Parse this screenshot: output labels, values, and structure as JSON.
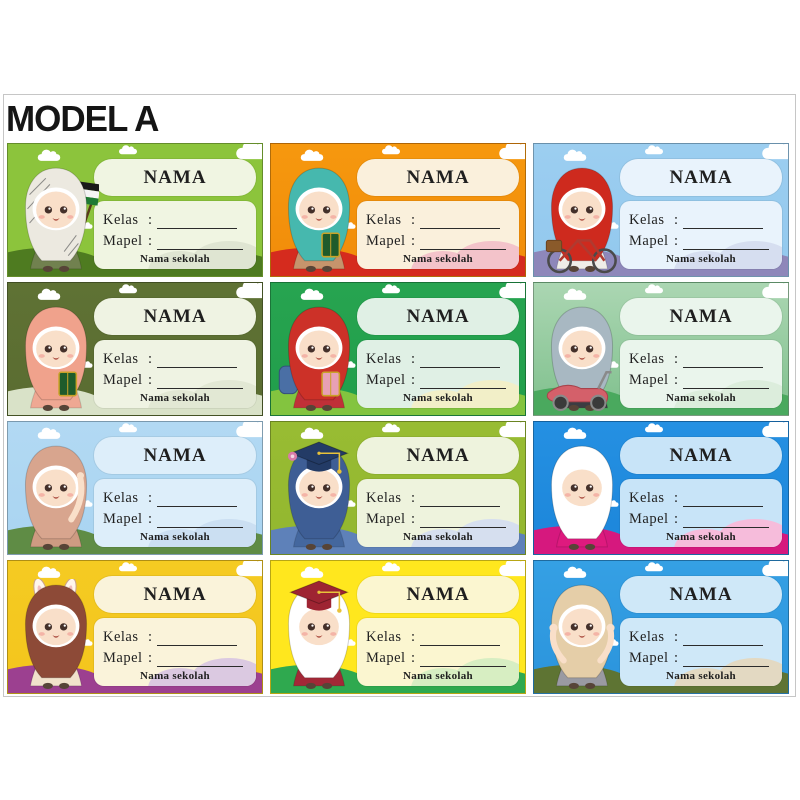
{
  "page": {
    "title": "MODEL A",
    "background": "#ffffff",
    "frame_border": "#c6c6c6"
  },
  "labels": {
    "nama": "NAMA",
    "kelas": "Kelas",
    "mapel": "Mapel",
    "colon": ":",
    "school": "Nama sekolah"
  },
  "cards": [
    {
      "name": "green-keffiyeh-flag",
      "character": "chibi girl in black-and-white keffiyeh hijab holding a Palestinian flag",
      "props": [
        "keffiyeh",
        "flag"
      ],
      "colors": {
        "bg": "#8CC43C",
        "bg2": "#8CC43C",
        "hill": "#4E7B20",
        "hill2": "#E2E6DA",
        "panel": "#F0F5E2",
        "pcloud": "#DFE5D2",
        "hijab": "#ECE9E0",
        "dress": "#71814F"
      }
    },
    {
      "name": "orange-quran-girl",
      "character": "chibi girl in teal hijab and tan dress holding a green Quran",
      "props": [
        "book"
      ],
      "colors": {
        "bg": "#F18C0A",
        "bg2": "#F6980E",
        "hill": "#D52B1E",
        "hill2": "#E4554A",
        "panel": "#FAF0DC",
        "pcloud": "#F3C3CA",
        "hijab": "#46B8AE",
        "dress": "#C6946C"
      }
    },
    {
      "name": "blue-bicycle-girl",
      "character": "chibi girl in red hijab riding a bicycle with a basket",
      "props": [
        "bike"
      ],
      "colors": {
        "bg": "#92C8EE",
        "bg2": "#9CCEF0",
        "hill": "#8E87BA",
        "hill2": "#A59FC9",
        "panel": "#E9F3FC",
        "pcloud": "#D6DEF0",
        "hijab": "#CE2A1E",
        "dress": "#EFEDE8"
      }
    },
    {
      "name": "olive-quran-girl",
      "character": "chibi girl in peach hijab holding a green Quran",
      "props": [
        "book"
      ],
      "colors": {
        "bg": "#5A6C31",
        "bg2": "#5F7234",
        "hill": "#D9E2C8",
        "hill2": "#F2F5EA",
        "panel": "#EFF3E3",
        "pcloud": "#E2E8D4",
        "hijab": "#F0A28C",
        "dress": "#EFA893"
      }
    },
    {
      "name": "green-school-girl",
      "character": "chibi girl in red hijab with blue backpack holding a book",
      "props": [
        "backpack",
        "book:#E8A0B4"
      ],
      "colors": {
        "bg": "#219E4B",
        "bg2": "#27A450",
        "hill": "#83C43F",
        "hill2": "#C9E69E",
        "panel": "#E0F0E5",
        "pcloud": "#F2EFC8",
        "hijab": "#CC3128",
        "dress": "#C03038"
      }
    },
    {
      "name": "green-scooter-girl",
      "character": "chibi girl in grey hijab riding a pink scooter",
      "props": [
        "scooter"
      ],
      "colors": {
        "bg": "#7FC08D",
        "bg2": "#ABD6B2",
        "hill": "#4AA95E",
        "hill2": "#BEE0C0",
        "panel": "#EAF5EC",
        "pcloud": "#DCEDDC",
        "hijab": "#A8B8C2",
        "dress": "#3C3C42"
      }
    },
    {
      "name": "sky-pointing-girl",
      "character": "chibi girl in long tan hijab pointing upward",
      "props": [
        "point"
      ],
      "colors": {
        "bg": "#A9D4F1",
        "bg2": "#B2D9F3",
        "hill": "#5F8C45",
        "hill2": "#79A45C",
        "panel": "#DDEEFA",
        "pcloud": "#CBDFF2",
        "hijab": "#D8A58E",
        "dress": "#CE9B82"
      }
    },
    {
      "name": "lime-graduate-girl",
      "character": "chibi girl in navy hijab wearing a graduation cap with a flower",
      "props": [
        "gradcap-navy"
      ],
      "colors": {
        "bg": "#93B72F",
        "bg2": "#98BC33",
        "hill": "#5E81B9",
        "hill2": "#C9D7ED",
        "panel": "#EEF3DD",
        "pcloud": "#D6DFEF",
        "hijab": "#3E5E95",
        "dress": "#44679E"
      }
    },
    {
      "name": "blue-magenta-dress-girl",
      "character": "chibi girl in white hijab and magenta gown",
      "props": [],
      "colors": {
        "bg": "#1C86DA",
        "bg2": "#2590E2",
        "hill": "#D6187E",
        "hill2": "#F4AED6",
        "panel": "#C8E4F8",
        "pcloud": "#F6BCDB",
        "hijab": "#FFFFFF",
        "dress": "#DE1A7E"
      }
    },
    {
      "name": "yellow-bunny-girl",
      "character": "chibi girl in maroon hijab with bunny-ear headband",
      "props": [
        "bunny"
      ],
      "colors": {
        "bg": "#F3C51D",
        "bg2": "#F5CB22",
        "hill": "#9C4090",
        "hill2": "#C08BBB",
        "panel": "#FAF3DA",
        "pcloud": "#DBC9E1",
        "hijab": "#8D4A37",
        "dress": "#F1E2CB"
      }
    },
    {
      "name": "yellow-graduate-girl",
      "character": "chibi girl in white hijab and maroon graduation gown and cap",
      "props": [
        "gradcap-maroon"
      ],
      "colors": {
        "bg": "#FFE71E",
        "bg2": "#FFE willkommen",
        "hill": "#2FA94F",
        "hill2": "#BEE394",
        "panel": "#FBF6D0",
        "pcloud": "#D7EEC2",
        "hijab": "#FFFFFF",
        "dress": "#A32837"
      }
    },
    {
      "name": "blue-waving-girl",
      "character": "chibi girl in cream hijab and grey skirt waving both hands",
      "props": [
        "arms-up"
      ],
      "colors": {
        "bg": "#2B94DC",
        "bg2": "#35A0E4",
        "hill": "#5E7433",
        "hill2": "#48663A",
        "panel": "#CFE8F8",
        "pcloud": "#E3D9C2",
        "hijab": "#E5CEA8",
        "dress": "#9A9AA2"
      }
    }
  ]
}
